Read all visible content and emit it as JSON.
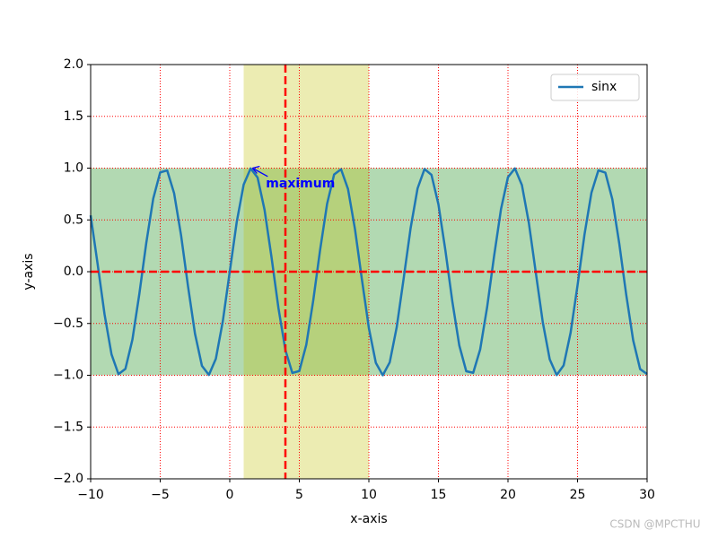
{
  "chart_data": {
    "type": "line",
    "xlabel": "x-axis",
    "ylabel": "y-axis",
    "x": [
      -10,
      -9.5,
      -9,
      -8.5,
      -8,
      -7.5,
      -7,
      -6.5,
      -6,
      -5.5,
      -5,
      -4.5,
      -4,
      -3.5,
      -3,
      -2.5,
      -2,
      -1.5,
      -1,
      -0.5,
      0,
      0.5,
      1,
      1.5,
      2,
      2.5,
      3,
      3.5,
      4,
      4.5,
      5,
      5.5,
      6,
      6.5,
      7,
      7.5,
      8,
      8.5,
      9,
      9.5,
      10,
      10.5,
      11,
      11.5,
      12,
      12.5,
      13,
      13.5,
      14,
      14.5,
      15,
      15.5,
      16,
      16.5,
      17,
      17.5,
      18,
      18.5,
      19,
      19.5,
      20,
      20.5,
      21,
      21.5,
      22,
      22.5,
      23,
      23.5,
      24,
      24.5,
      25,
      25.5,
      26,
      26.5,
      27,
      27.5,
      28,
      28.5,
      29,
      29.5,
      30
    ],
    "series": [
      {
        "name": "sinx",
        "color": "#1f77b4",
        "values": [
          0.544,
          0.075,
          -0.412,
          -0.798,
          -0.989,
          -0.938,
          -0.657,
          -0.215,
          0.279,
          0.706,
          0.959,
          0.978,
          0.757,
          0.351,
          -0.141,
          -0.598,
          -0.909,
          -0.997,
          -0.841,
          -0.479,
          0,
          0.479,
          0.841,
          0.997,
          0.909,
          0.598,
          0.141,
          -0.351,
          -0.757,
          -0.978,
          -0.959,
          -0.706,
          -0.279,
          0.215,
          0.657,
          0.938,
          0.989,
          0.798,
          0.412,
          -0.075,
          -0.544,
          -0.88,
          -1.0,
          -0.875,
          -0.537,
          -0.066,
          0.42,
          0.804,
          0.991,
          0.935,
          0.65,
          0.206,
          -0.288,
          -0.712,
          -0.961,
          -0.976,
          -0.751,
          -0.343,
          0.15,
          0.605,
          0.913,
          0.997,
          0.837,
          0.471,
          -0.009,
          -0.487,
          -0.846,
          -0.998,
          -0.905,
          -0.59,
          -0.132,
          0.359,
          0.763,
          0.979,
          0.956,
          0.7,
          0.271,
          -0.223,
          -0.663,
          -0.941,
          -0.988
        ]
      }
    ],
    "xlim": [
      -10,
      30
    ],
    "ylim": [
      -2,
      2
    ],
    "xticks": [
      {
        "value": -10,
        "label": "−10"
      },
      {
        "value": -5,
        "label": "−5"
      },
      0,
      5,
      10,
      15,
      20,
      25,
      30
    ],
    "yticks": [
      {
        "value": -2,
        "label": "−2.0"
      },
      {
        "value": -1.5,
        "label": "−1.5"
      },
      {
        "value": -1,
        "label": "−1.0"
      },
      {
        "value": -0.5,
        "label": "−0.5"
      },
      {
        "value": 0,
        "label": "0.0"
      },
      {
        "value": 0.5,
        "label": "0.5"
      },
      {
        "value": 1,
        "label": "1.0"
      },
      {
        "value": 1.5,
        "label": "1.5"
      },
      {
        "value": 2,
        "label": "2.0"
      }
    ],
    "grid": true,
    "grid_color": "red",
    "hline": 0,
    "vline": 4,
    "line_color": "red",
    "hspan": [
      -1,
      1
    ],
    "hspan_color": "green",
    "vspan": [
      1,
      10
    ],
    "vspan_color": "#bfbf00",
    "annotation": {
      "text": "maximum",
      "xy": [
        1.571,
        1
      ],
      "xytext": [
        2.6,
        0.85
      ],
      "color": "blue"
    },
    "legend": "upper right",
    "watermark": "CSDN @MPCTHU"
  }
}
